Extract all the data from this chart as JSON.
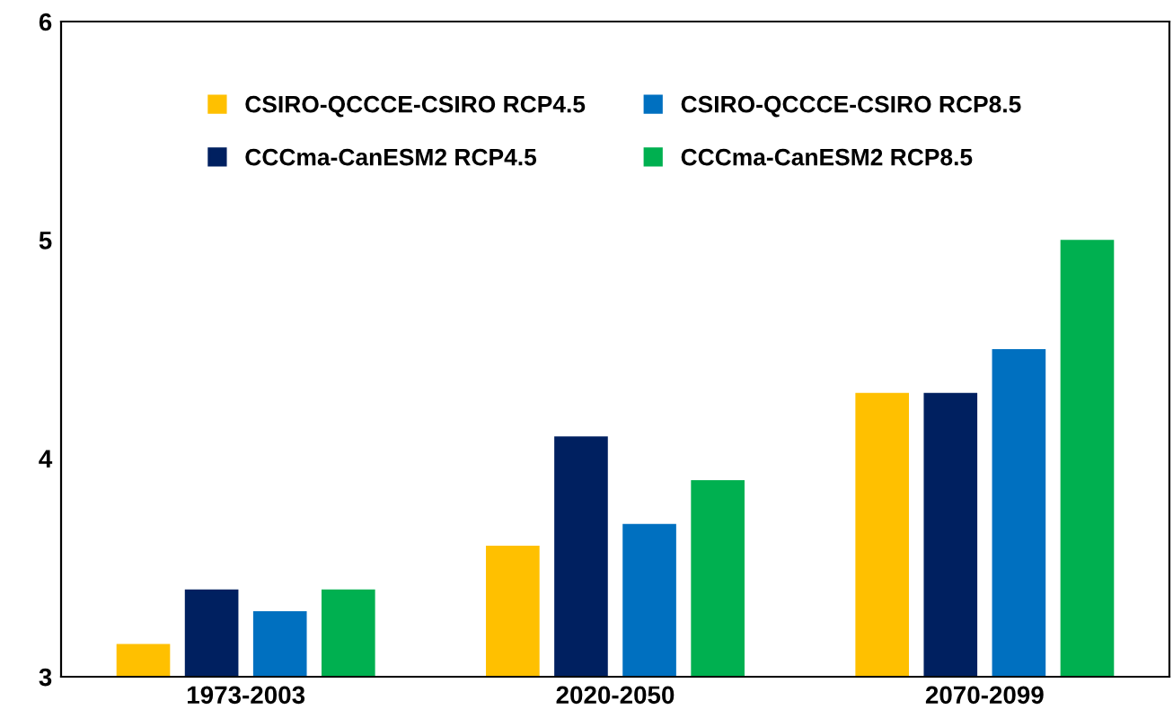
{
  "chart_data": {
    "type": "bar",
    "categories": [
      "1973-2003",
      "2020-2050",
      "2070-2099"
    ],
    "series": [
      {
        "name": "CSIRO-QCCCE-CSIRO RCP4.5",
        "color": "#ffc000",
        "values": [
          3.15,
          3.6,
          4.3
        ]
      },
      {
        "name": "CCCma-CanESM2 RCP4.5",
        "color": "#002060",
        "values": [
          3.4,
          4.1,
          4.3
        ]
      },
      {
        "name": "CSIRO-QCCCE-CSIRO RCP8.5",
        "color": "#0070c0",
        "values": [
          3.3,
          3.7,
          4.5
        ]
      },
      {
        "name": "CCCma-CanESM2 RCP8.5",
        "color": "#00b050",
        "values": [
          3.4,
          3.9,
          5.0
        ]
      }
    ],
    "ylim": [
      3,
      6
    ],
    "yticks": [
      3,
      4,
      5,
      6
    ],
    "grid": false,
    "legend": "top"
  }
}
